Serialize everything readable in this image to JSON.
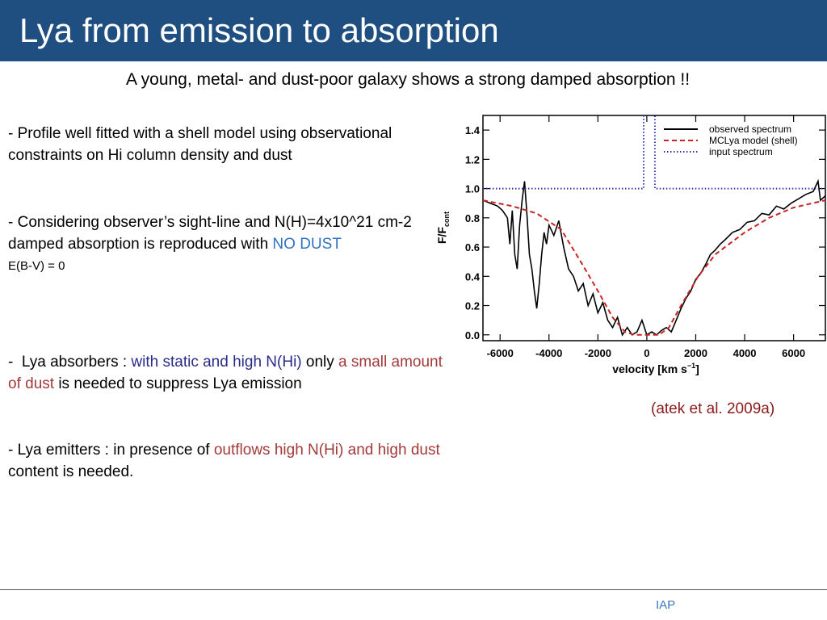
{
  "header": {
    "title": "Lya from emission to absorption"
  },
  "subtitle": "A young, metal- and dust-poor galaxy shows a strong damped absorption !!",
  "paragraphs": [
    {
      "runs": [
        {
          "text": "- Profile well fitted with a shell model using observational constraints on Hi column density and dust"
        }
      ]
    },
    {
      "runs": [
        {
          "text": "- Considering observer’s sight-line and N(H)=4x10^21 cm-2 damped absorption is reproduced with "
        },
        {
          "text": "NO DUST",
          "color": "#2e74c0"
        }
      ]
    },
    {
      "runs": [
        {
          "text": "E(B-V) = 0"
        }
      ]
    },
    {
      "runs": [
        {
          "text": "-  Lya absorbers : "
        },
        {
          "text": "with static and high N(Hi)",
          "color": "#2a2a8a"
        },
        {
          "text": " only "
        },
        {
          "text": "a small amount of dust",
          "color": "#a33a3a"
        },
        {
          "text": " is needed to suppress Lya emission"
        }
      ]
    },
    {
      "runs": [
        {
          "text": "- Lya emitters : in presence of "
        },
        {
          "text": "outflows high N(Hi) and high dust",
          "color": "#a33a3a"
        },
        {
          "text": " content is needed."
        }
      ]
    }
  ],
  "citation": "(atek et al. 2009a)",
  "footer": "IAP",
  "chart_data": {
    "type": "line",
    "y_label": "F/F",
    "y_label_sub": "cont",
    "x_label": "velocity [km s",
    "x_label_sup": "−1",
    "x_label_end": "]",
    "xlim": [
      -6700,
      7300
    ],
    "ylim": [
      -0.04,
      1.5
    ],
    "xticks": [
      -6000,
      -4000,
      -2000,
      0,
      2000,
      4000,
      6000
    ],
    "yticks": [
      {
        "value": 0,
        "label": "0.0"
      },
      {
        "value": 0.2,
        "label": "0.2"
      },
      {
        "value": 0.4,
        "label": "0.4"
      },
      {
        "value": 0.6,
        "label": "0.6"
      },
      {
        "value": 0.8,
        "label": "0.8"
      },
      {
        "value": 1.0,
        "label": "1.0"
      },
      {
        "value": 1.2,
        "label": "1.2"
      },
      {
        "value": 1.4,
        "label": "1.4"
      }
    ],
    "series": [
      {
        "name": "observed spectrum",
        "color": "#000000",
        "dash": "solid",
        "x": [
          -6700,
          -6400,
          -6100,
          -5900,
          -5700,
          -5600,
          -5500,
          -5400,
          -5300,
          -5200,
          -5100,
          -5000,
          -4900,
          -4800,
          -4700,
          -4600,
          -4500,
          -4400,
          -4300,
          -4200,
          -4100,
          -4000,
          -3800,
          -3600,
          -3400,
          -3200,
          -3000,
          -2800,
          -2600,
          -2400,
          -2200,
          -2000,
          -1800,
          -1600,
          -1400,
          -1200,
          -1000,
          -800,
          -600,
          -400,
          -200,
          0,
          200,
          400,
          600,
          800,
          1000,
          1200,
          1400,
          1600,
          1800,
          2000,
          2200,
          2400,
          2600,
          2800,
          3000,
          3200,
          3500,
          3800,
          4100,
          4400,
          4700,
          5000,
          5300,
          5600,
          5900,
          6200,
          6500,
          6800,
          7000,
          7100,
          7300
        ],
        "values": [
          0.92,
          0.9,
          0.88,
          0.85,
          0.8,
          0.62,
          0.85,
          0.55,
          0.45,
          0.75,
          0.92,
          1.05,
          0.82,
          0.55,
          0.45,
          0.3,
          0.18,
          0.35,
          0.55,
          0.7,
          0.62,
          0.75,
          0.68,
          0.78,
          0.6,
          0.45,
          0.4,
          0.3,
          0.35,
          0.2,
          0.28,
          0.15,
          0.22,
          0.1,
          0.05,
          0.12,
          0.0,
          0.05,
          0.0,
          0.02,
          0.1,
          0.0,
          0.02,
          0.0,
          0.03,
          0.05,
          0.02,
          0.1,
          0.18,
          0.25,
          0.3,
          0.38,
          0.42,
          0.48,
          0.55,
          0.58,
          0.62,
          0.65,
          0.7,
          0.72,
          0.77,
          0.78,
          0.83,
          0.82,
          0.88,
          0.86,
          0.9,
          0.93,
          0.96,
          0.98,
          1.05,
          0.92,
          0.95
        ]
      },
      {
        "name": "MCLya model (shell)",
        "color": "#cc2222",
        "dash": "dashed",
        "x": [
          -6700,
          -5500,
          -4500,
          -3500,
          -2700,
          -2000,
          -1400,
          -900,
          -500,
          500,
          900,
          1400,
          2100,
          2800,
          4000,
          5000,
          6000,
          7300
        ],
        "values": [
          0.92,
          0.88,
          0.83,
          0.72,
          0.5,
          0.3,
          0.12,
          0.02,
          0,
          0,
          0.05,
          0.2,
          0.4,
          0.55,
          0.7,
          0.8,
          0.87,
          0.92
        ]
      },
      {
        "name": "input spectrum",
        "color": "#3333aa",
        "dash": "dotted",
        "x": [
          -6700,
          -130,
          -130,
          330,
          330,
          7300
        ],
        "values": [
          1,
          1,
          1.5,
          1.5,
          1,
          1
        ]
      }
    ]
  }
}
